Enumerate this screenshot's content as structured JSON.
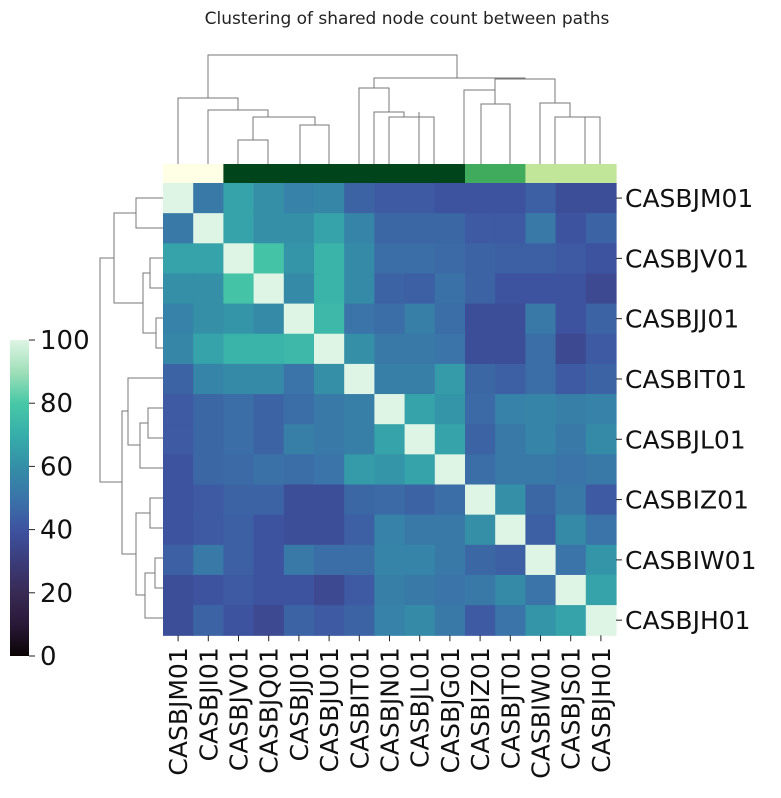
{
  "chart_data": {
    "type": "heatmap",
    "title": "Clustering of shared node count between paths",
    "order": [
      "CASBJM01",
      "CASBJI01",
      "CASBJV01",
      "CASBJQ01",
      "CASBJJ01",
      "CASBJU01",
      "CASBIT01",
      "CASBJN01",
      "CASBJL01",
      "CASBJG01",
      "CASBIZ01",
      "CASBJT01",
      "CASBIW01",
      "CASBJS01",
      "CASBJH01"
    ],
    "x_tick_labels": [
      "CASBJM01",
      "CASBJI01",
      "CASBJV01",
      "CASBJQ01",
      "CASBJJ01",
      "CASBJU01",
      "CASBIT01",
      "CASBJN01",
      "CASBJL01",
      "CASBJG01",
      "CASBIZ01",
      "CASBJT01",
      "CASBIW01",
      "CASBJS01",
      "CASBJH01"
    ],
    "y_tick_labels": [
      "CASBJM01",
      "CASBJV01",
      "CASBJJ01",
      "CASBIT01",
      "CASBJL01",
      "CASBIZ01",
      "CASBIW01",
      "CASBJH01"
    ],
    "values": [
      [
        100,
        52,
        66,
        60,
        55,
        57,
        45,
        42,
        42,
        40,
        40,
        40,
        44,
        38,
        38
      ],
      [
        52,
        100,
        66,
        60,
        60,
        66,
        56,
        46,
        46,
        46,
        42,
        42,
        52,
        40,
        45
      ],
      [
        66,
        66,
        100,
        78,
        62,
        72,
        58,
        48,
        48,
        47,
        45,
        44,
        44,
        42,
        40
      ],
      [
        60,
        60,
        78,
        100,
        58,
        72,
        58,
        45,
        44,
        49,
        45,
        40,
        40,
        40,
        36
      ],
      [
        55,
        60,
        62,
        58,
        100,
        74,
        50,
        48,
        54,
        48,
        38,
        38,
        52,
        40,
        45
      ],
      [
        57,
        66,
        72,
        72,
        74,
        100,
        60,
        52,
        52,
        50,
        38,
        38,
        48,
        36,
        42
      ],
      [
        45,
        56,
        58,
        58,
        50,
        60,
        100,
        54,
        54,
        64,
        46,
        44,
        48,
        42,
        45
      ],
      [
        42,
        46,
        48,
        45,
        48,
        52,
        54,
        100,
        66,
        62,
        47,
        55,
        56,
        54,
        55
      ],
      [
        42,
        46,
        48,
        45,
        54,
        52,
        54,
        66,
        100,
        66,
        45,
        52,
        56,
        52,
        58
      ],
      [
        40,
        46,
        47,
        49,
        48,
        50,
        64,
        62,
        66,
        100,
        48,
        52,
        52,
        50,
        52
      ],
      [
        40,
        42,
        45,
        45,
        38,
        38,
        46,
        47,
        45,
        48,
        100,
        60,
        46,
        52,
        42
      ],
      [
        40,
        42,
        44,
        40,
        38,
        38,
        44,
        55,
        52,
        52,
        60,
        100,
        44,
        58,
        50
      ],
      [
        44,
        52,
        44,
        40,
        52,
        48,
        48,
        56,
        56,
        52,
        46,
        44,
        100,
        50,
        62
      ],
      [
        38,
        40,
        42,
        40,
        40,
        36,
        42,
        54,
        52,
        50,
        52,
        58,
        50,
        100,
        66
      ],
      [
        38,
        45,
        40,
        36,
        45,
        42,
        45,
        55,
        58,
        52,
        42,
        50,
        62,
        66,
        100
      ]
    ],
    "clusters": [
      0,
      0,
      1,
      1,
      1,
      1,
      1,
      1,
      1,
      1,
      2,
      2,
      3,
      3,
      3
    ],
    "cluster_colors": [
      "#ffffe5",
      "#00441b",
      "#41ab5d",
      "#c2e699"
    ],
    "colorbar": {
      "min": 0,
      "max": 100,
      "ticks": [
        0,
        20,
        40,
        60,
        80,
        100
      ]
    },
    "colormap": "mako"
  }
}
